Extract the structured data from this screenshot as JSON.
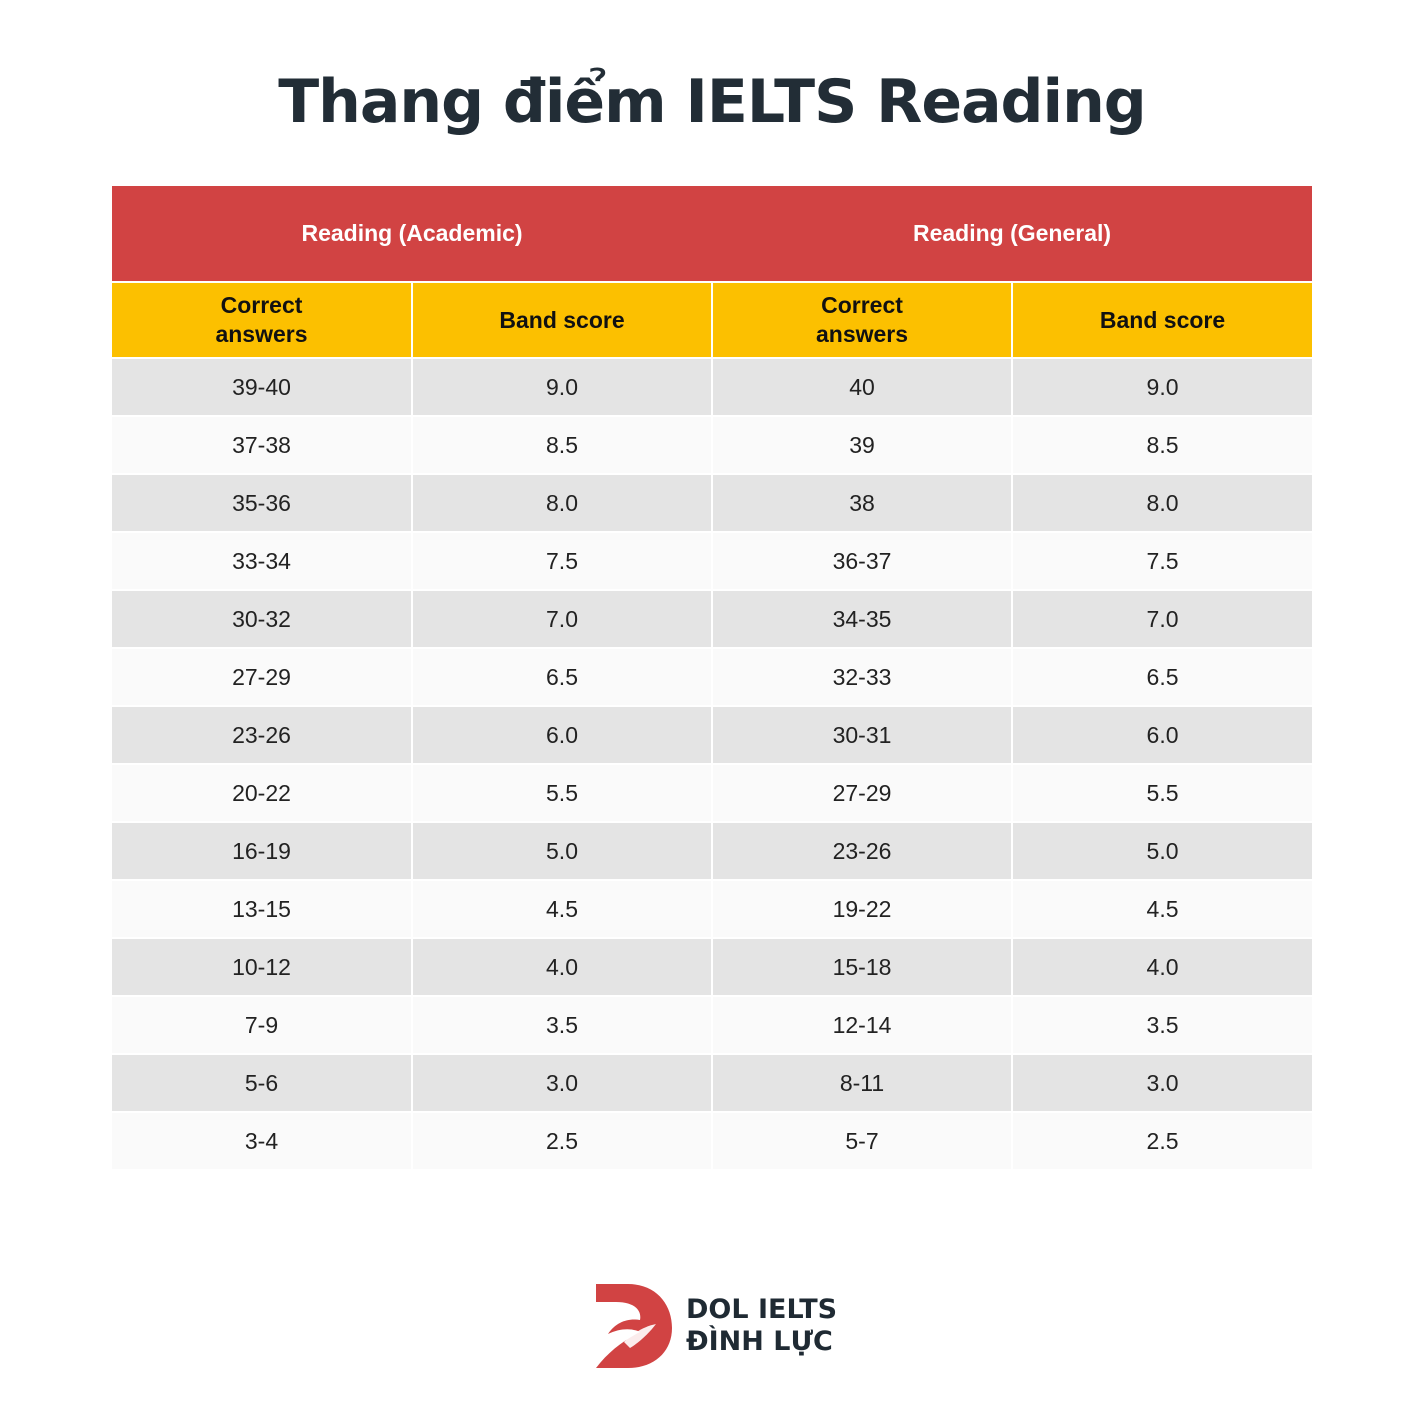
{
  "title": "Thang điểm IELTS Reading",
  "table": {
    "groups": [
      "Reading (Academic)",
      "Reading (General)"
    ],
    "subheaders": [
      "Correct\nanswers",
      "Band score",
      "Correct\nanswers",
      "Band score"
    ],
    "rows": [
      [
        "39-40",
        "9.0",
        "40",
        "9.0"
      ],
      [
        "37-38",
        "8.5",
        "39",
        "8.5"
      ],
      [
        "35-36",
        "8.0",
        "38",
        "8.0"
      ],
      [
        "33-34",
        "7.5",
        "36-37",
        "7.5"
      ],
      [
        "30-32",
        "7.0",
        "34-35",
        "7.0"
      ],
      [
        "27-29",
        "6.5",
        "32-33",
        "6.5"
      ],
      [
        "23-26",
        "6.0",
        "30-31",
        "6.0"
      ],
      [
        "20-22",
        "5.5",
        "27-29",
        "5.5"
      ],
      [
        "16-19",
        "5.0",
        "23-26",
        "5.0"
      ],
      [
        "13-15",
        "4.5",
        "19-22",
        "4.5"
      ],
      [
        "10-12",
        "4.0",
        "15-18",
        "4.0"
      ],
      [
        "7-9",
        "3.5",
        "12-14",
        "3.5"
      ],
      [
        "5-6",
        "3.0",
        "8-11",
        "3.0"
      ],
      [
        "3-4",
        "2.5",
        "5-7",
        "2.5"
      ]
    ]
  },
  "logo": {
    "line1": "DOL IELTS",
    "line2": "ĐÌNH LỰC",
    "icon": "dol-logo-icon"
  },
  "colors": {
    "group_header_bg": "#d14343",
    "subheader_bg": "#fcc000",
    "row_odd_bg": "#e4e4e4",
    "row_even_bg": "#fafafa",
    "title_text": "#222d36"
  }
}
